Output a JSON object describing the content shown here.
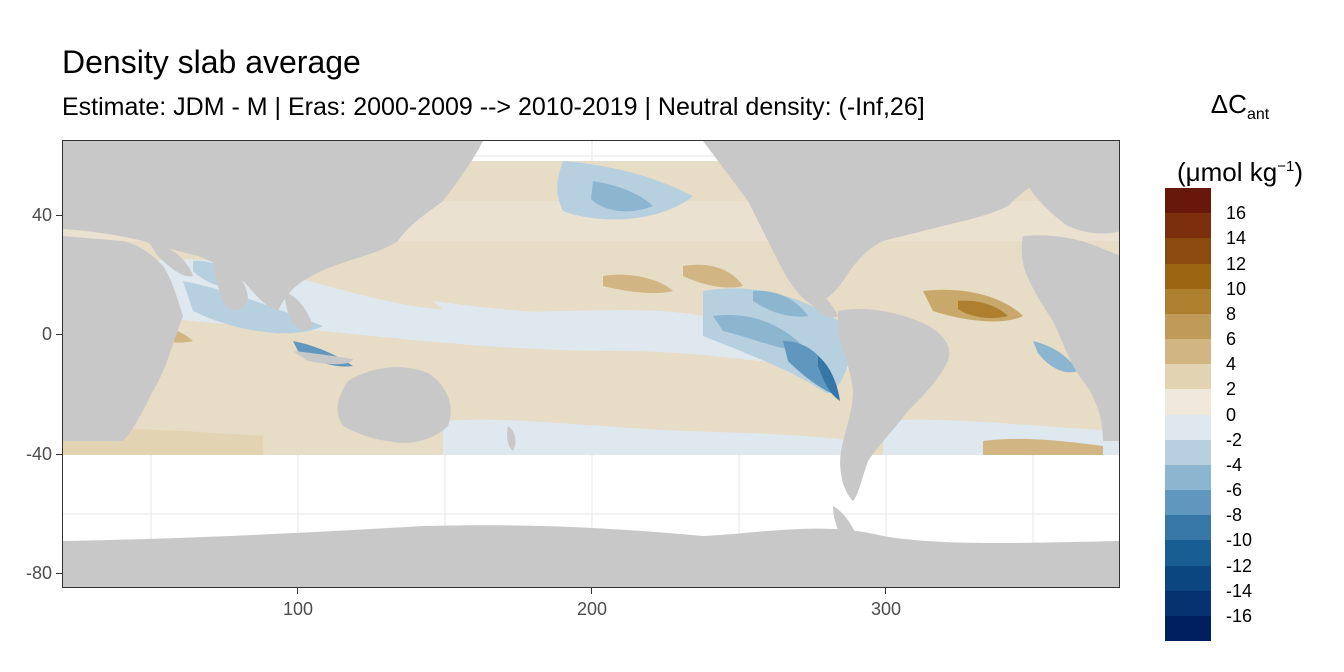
{
  "title": "Density slab average",
  "subtitle": "Estimate: JDM - M | Eras: 2000-2009 --> 2010-2019 | Neutral density: (-Inf,26]",
  "legend": {
    "title_main": "ΔC",
    "title_sub": "ant",
    "title_unit_open": "(μmol kg",
    "title_unit_sup": "−1",
    "title_unit_close": ")",
    "labels": [
      "16",
      "14",
      "12",
      "10",
      "8",
      "6",
      "4",
      "2",
      "0",
      "-2",
      "-4",
      "-6",
      "-8",
      "-10",
      "-12",
      "-14",
      "-16"
    ],
    "colors": [
      "#67180a",
      "#7b2f0d",
      "#8b4a0e",
      "#9c6512",
      "#ad7f2e",
      "#bf9a58",
      "#d1b684",
      "#e2d3b2",
      "#efe9dc",
      "#dfe8ee",
      "#b7d0e0",
      "#8cb5d0",
      "#5f97be",
      "#3677a7",
      "#195e92",
      "#0c4680",
      "#063270",
      "#001f5e"
    ]
  },
  "axes": {
    "x_ticks": [
      "100",
      "200",
      "300"
    ],
    "y_ticks": [
      "40",
      "0",
      "-40",
      "-80"
    ],
    "x_range": [
      20,
      380
    ],
    "y_range": [
      -85,
      65
    ]
  },
  "map": {
    "land_color": "#c8c8c8",
    "ocean_background": "#ffffff",
    "grid_color": "#ebebeb",
    "data_extent_lat": [
      -40,
      65
    ],
    "features": [
      "Africa",
      "Eurasia",
      "Australia",
      "North America",
      "South America",
      "Antarctica"
    ]
  }
}
